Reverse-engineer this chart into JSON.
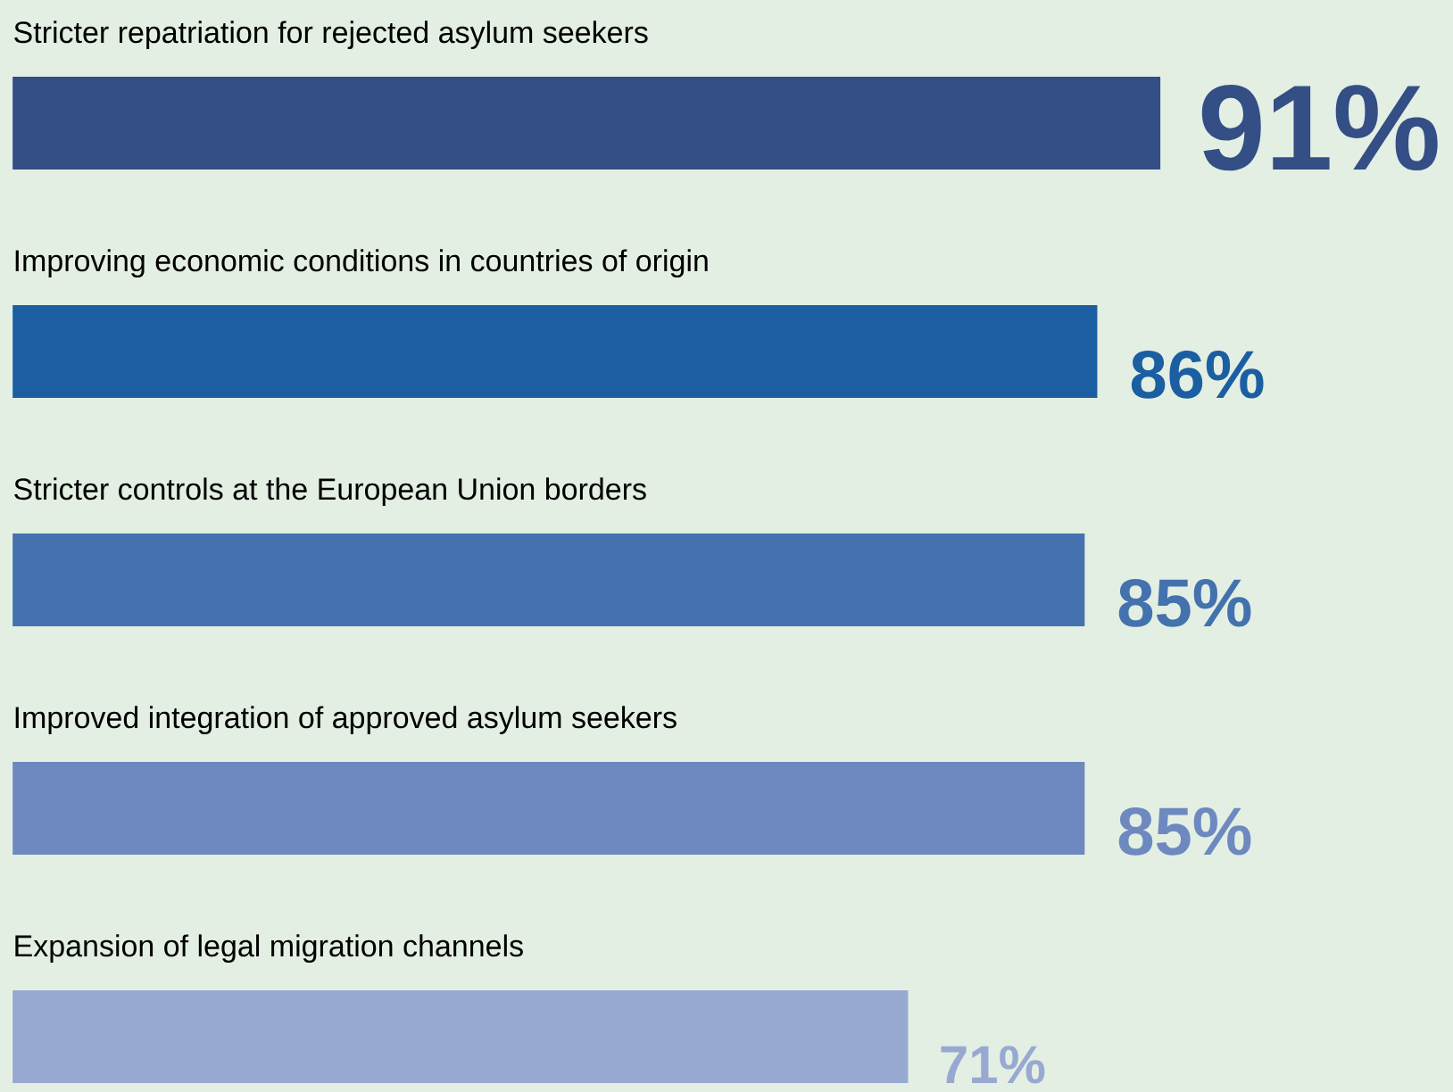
{
  "chart_data": {
    "type": "bar",
    "orientation": "horizontal",
    "categories": [
      "Stricter repatriation for rejected asylum seekers",
      "Improving economic conditions in countries of origin",
      "Stricter controls at the European Union borders",
      "Improved integration of approved asylum seekers",
      "Expansion of legal migration channels"
    ],
    "values": [
      91,
      86,
      85,
      85,
      71
    ],
    "colors": [
      "#344e86",
      "#1b5fa2",
      "#4472ae",
      "#6e89c0",
      "#98a9d1"
    ],
    "value_labels": [
      "91%",
      "86%",
      "85%",
      "85%",
      "71%"
    ]
  }
}
